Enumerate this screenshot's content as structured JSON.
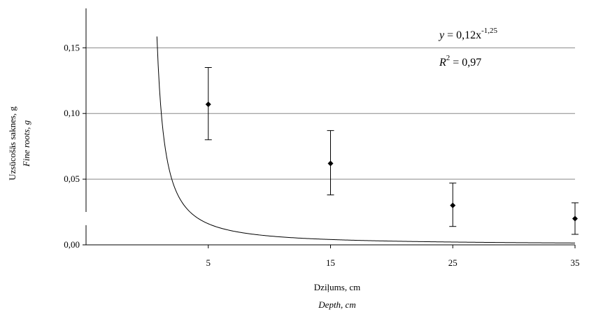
{
  "chart_data": {
    "type": "scatter",
    "x": [
      5,
      15,
      25,
      35
    ],
    "series": [
      {
        "values": [
          0.107,
          0.062,
          0.03,
          0.02
        ],
        "error_low": [
          0.08,
          0.038,
          0.014,
          0.008
        ],
        "error_high": [
          0.135,
          0.087,
          0.047,
          0.032
        ],
        "marker": "diamond",
        "color": "#000000"
      }
    ],
    "trendline": {
      "type": "power",
      "coefficient": 0.12,
      "exponent": -1.25,
      "color": "#000000"
    },
    "equation": {
      "y_symbol": "y",
      "rhs": " = 0,12x",
      "exponent_text": "-1,25"
    },
    "r_squared": {
      "symbol": "R",
      "power": "2",
      "rhs": " = 0,97"
    },
    "xlabel": "Dziļums, cm",
    "xlabel_en": "Depth, cm",
    "ylabel": "Uzsūcošās saknes, g",
    "ylabel_en": "Fine roots, g",
    "x_ticks": [
      5,
      15,
      25,
      35
    ],
    "x_tick_labels": [
      "5",
      "15",
      "25",
      "35"
    ],
    "y_ticks": [
      0,
      0.05,
      0.1,
      0.15
    ],
    "y_tick_labels": [
      "0,00",
      "0,05",
      "0,10",
      "0,15"
    ],
    "xlim": [
      -5,
      35
    ],
    "ylim": [
      0,
      0.18
    ],
    "grid": "horizontal"
  }
}
